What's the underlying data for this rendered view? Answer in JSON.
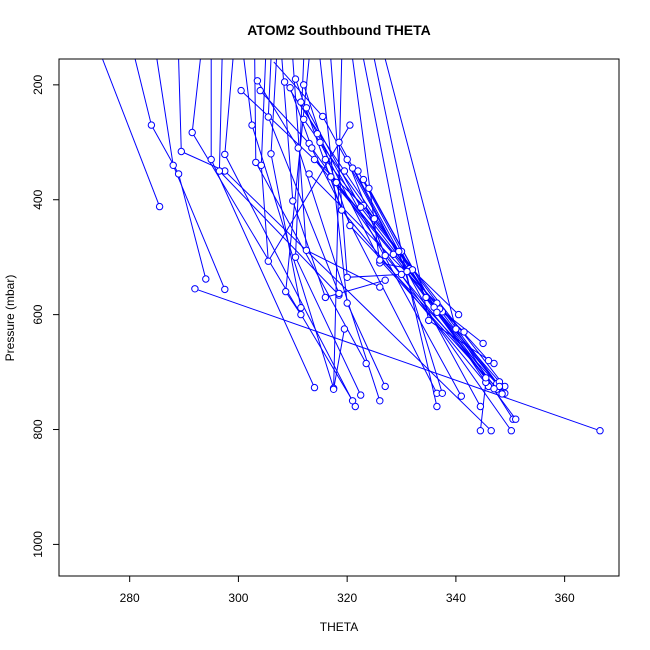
{
  "chart_data": {
    "type": "line",
    "title": "ATOM2 Southbound THETA",
    "xlabel": "THETA",
    "ylabel": "Pressure (mbar)",
    "xlim": [
      267,
      370
    ],
    "ylim": [
      1055,
      155
    ],
    "y_reversed": true,
    "x_ticks": [
      "280",
      "300",
      "320",
      "340",
      "360"
    ],
    "y_ticks": [
      "200",
      "400",
      "600",
      "800",
      "1000"
    ],
    "x_tick_values": [
      280,
      300,
      320,
      340,
      360
    ],
    "y_tick_values": [
      200,
      400,
      600,
      800,
      1000
    ],
    "grid": false,
    "legend": "none",
    "color": "#0000ff",
    "series": [
      {
        "x": [
          275,
          285.5
        ],
        "y": [
          155,
          412
        ]
      },
      {
        "x": [
          281,
          284,
          289,
          294
        ],
        "y": [
          155,
          270,
          355,
          538
        ]
      },
      {
        "x": [
          285,
          288,
          297.5
        ],
        "y": [
          155,
          340,
          556
        ]
      },
      {
        "x": [
          289,
          289.5,
          297.5,
          346.5
        ],
        "y": [
          155,
          316,
          350,
          802
        ]
      },
      {
        "x": [
          293,
          291.5,
          321
        ],
        "y": [
          155,
          283,
          750
        ]
      },
      {
        "x": [
          295,
          295,
          314
        ],
        "y": [
          155,
          330,
          727
        ]
      },
      {
        "x": [
          297,
          296.5,
          318.5
        ],
        "y": [
          155,
          350,
          566
        ]
      },
      {
        "x": [
          299,
          297.5,
          321.5
        ],
        "y": [
          155,
          321,
          760
        ]
      },
      {
        "x": [
          301,
          302.5,
          317.5
        ],
        "y": [
          155,
          270,
          728
        ]
      },
      {
        "x": [
          303,
          303.2,
          323.5
        ],
        "y": [
          155,
          335,
          685
        ]
      },
      {
        "x": [
          305,
          304.2,
          305.5,
          320.5
        ],
        "y": [
          155,
          340,
          507,
          270
        ]
      },
      {
        "x": [
          306,
          305.5,
          318.5
        ],
        "y": [
          155,
          256,
          563
        ]
      },
      {
        "x": [
          307,
          306,
          311.5
        ],
        "y": [
          155,
          320,
          588
        ]
      },
      {
        "x": [
          308,
          310,
          316,
          327
        ],
        "y": [
          155,
          402,
          570,
          540
        ]
      },
      {
        "x": [
          310,
          312.5,
          326
        ],
        "y": [
          155,
          488,
          552
        ]
      },
      {
        "x": [
          312,
          310.5,
          322.5
        ],
        "y": [
          155,
          500,
          740
        ]
      },
      {
        "x": [
          313,
          308.7,
          311.5
        ],
        "y": [
          155,
          560,
          600
        ]
      },
      {
        "x": [
          315,
          320,
          327
        ],
        "y": [
          155,
          580,
          725
        ]
      },
      {
        "x": [
          317,
          320,
          330
        ],
        "y": [
          155,
          535,
          530
        ]
      },
      {
        "x": [
          319,
          317.5,
          319.5
        ],
        "y": [
          155,
          730,
          625
        ]
      },
      {
        "x": [
          321,
          326,
          331.5
        ],
        "y": [
          155,
          510,
          520
        ]
      },
      {
        "x": [
          323,
          330,
          336.5
        ],
        "y": [
          155,
          490,
          760
        ]
      },
      {
        "x": [
          325,
          335,
          347
        ],
        "y": [
          155,
          610,
          685
        ]
      },
      {
        "x": [
          327,
          340,
          350.5
        ],
        "y": [
          155,
          625,
          782
        ]
      },
      {
        "x": [
          303.5,
          311,
          326
        ],
        "y": [
          193,
          310,
          750
        ]
      },
      {
        "x": [
          304,
          313,
          336.5
        ],
        "y": [
          210,
          302,
          737
        ]
      },
      {
        "x": [
          306.5,
          315.5,
          344.5
        ],
        "y": [
          160,
          255,
          760
        ]
      },
      {
        "x": [
          310.5,
          319,
          346
        ],
        "y": [
          190,
          418,
          725
        ]
      },
      {
        "x": [
          311.5,
          314.5,
          341
        ],
        "y": [
          230,
          285,
          742
        ]
      },
      {
        "x": [
          308.5,
          319.5,
          345.5,
          344.5
        ],
        "y": [
          195,
          350,
          718,
          802
        ]
      },
      {
        "x": [
          312,
          320.5,
          347.5
        ],
        "y": [
          200,
          445,
          720
        ]
      },
      {
        "x": [
          309.5,
          313.5,
          350.2
        ],
        "y": [
          205,
          310,
          802
        ]
      },
      {
        "x": [
          300.5,
          323,
          349
        ],
        "y": [
          210,
          410,
          725
        ]
      },
      {
        "x": [
          312.5,
          322.5,
          348
        ],
        "y": [
          240,
          413,
          726
        ]
      },
      {
        "x": [
          312,
          325,
          349
        ],
        "y": [
          260,
          433,
          737
        ]
      },
      {
        "x": [
          315,
          326,
          348.5
        ],
        "y": [
          300,
          505,
          738
        ]
      },
      {
        "x": [
          314,
          328.5,
          351
        ],
        "y": [
          330,
          495,
          782
        ]
      },
      {
        "x": [
          316,
          332,
          340.5
        ],
        "y": [
          330,
          522,
          600
        ]
      },
      {
        "x": [
          313,
          336.5,
          346
        ],
        "y": [
          355,
          580,
          680
        ]
      },
      {
        "x": [
          317,
          337.5,
          341.5
        ],
        "y": [
          360,
          595,
          630
        ]
      },
      {
        "x": [
          318,
          337,
          345
        ],
        "y": [
          370,
          590,
          650
        ]
      },
      {
        "x": [
          318.5,
          329.5,
          337.5
        ],
        "y": [
          300,
          490,
          737
        ]
      },
      {
        "x": [
          320,
          327,
          345.5
        ],
        "y": [
          330,
          497,
          710
        ]
      },
      {
        "x": [
          321,
          331,
          347.5
        ],
        "y": [
          345,
          525,
          730
        ]
      },
      {
        "x": [
          322,
          334.5,
          348
        ],
        "y": [
          350,
          570,
          717
        ]
      },
      {
        "x": [
          323,
          336,
          348
        ],
        "y": [
          365,
          587,
          725
        ]
      },
      {
        "x": [
          324,
          336.5,
          347
        ],
        "y": [
          380,
          596,
          729
        ]
      },
      {
        "x": [
          292,
          366.5
        ],
        "y": [
          555,
          802
        ]
      }
    ]
  }
}
